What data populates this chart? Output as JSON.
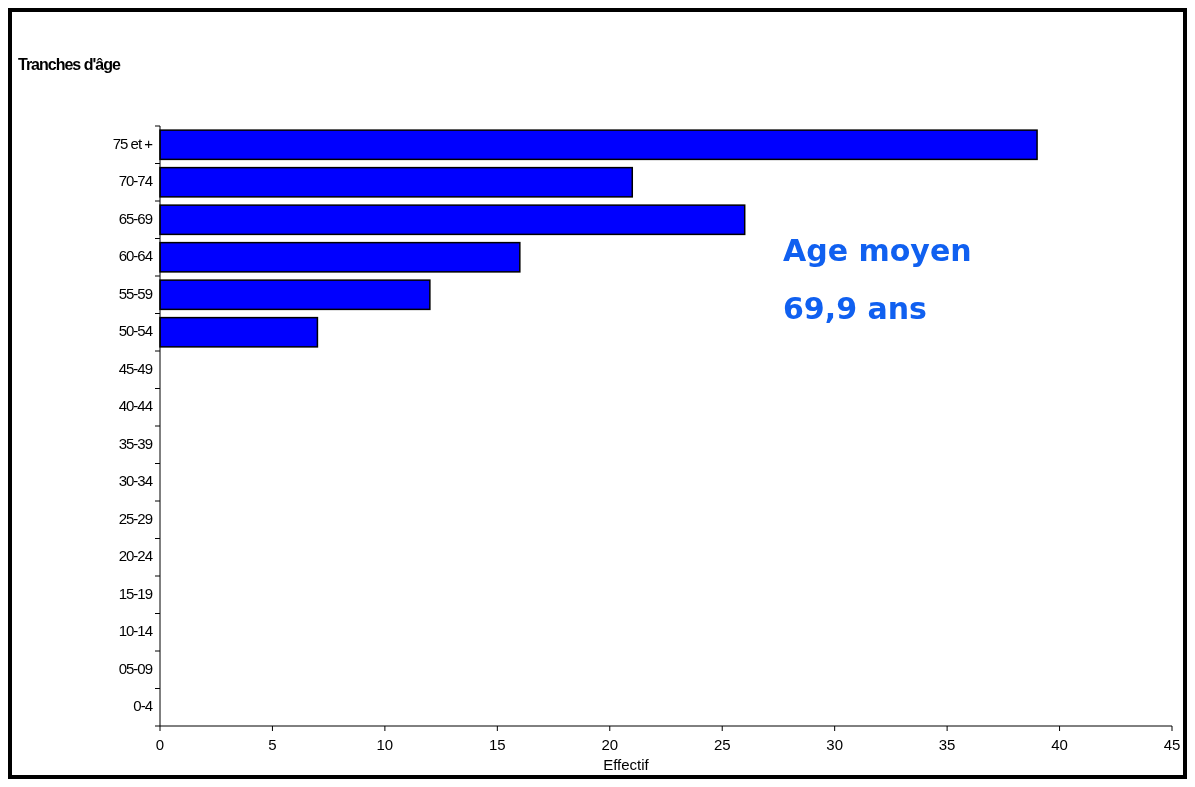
{
  "chart_data": {
    "type": "bar",
    "orientation": "horizontal",
    "ylabel": "Tranches d'âge",
    "xlabel": "Effectif",
    "categories": [
      "75 et +",
      "70-74",
      "65-69",
      "60-64",
      "55-59",
      "50-54",
      "45-49",
      "40-44",
      "35-39",
      "30-34",
      "25-29",
      "20-24",
      "15-19",
      "10-14",
      "05-09",
      "0-4"
    ],
    "values": [
      39,
      21,
      26,
      16,
      12,
      7,
      0,
      0,
      0,
      0,
      0,
      0,
      0,
      0,
      0,
      0
    ],
    "color": "#0000ff",
    "xlim": [
      0,
      45
    ],
    "xticks": [
      0,
      5,
      10,
      15,
      20,
      25,
      30,
      35,
      40,
      45
    ],
    "grid": false,
    "annotations": [
      "Age moyen",
      "69,9 ans"
    ]
  }
}
